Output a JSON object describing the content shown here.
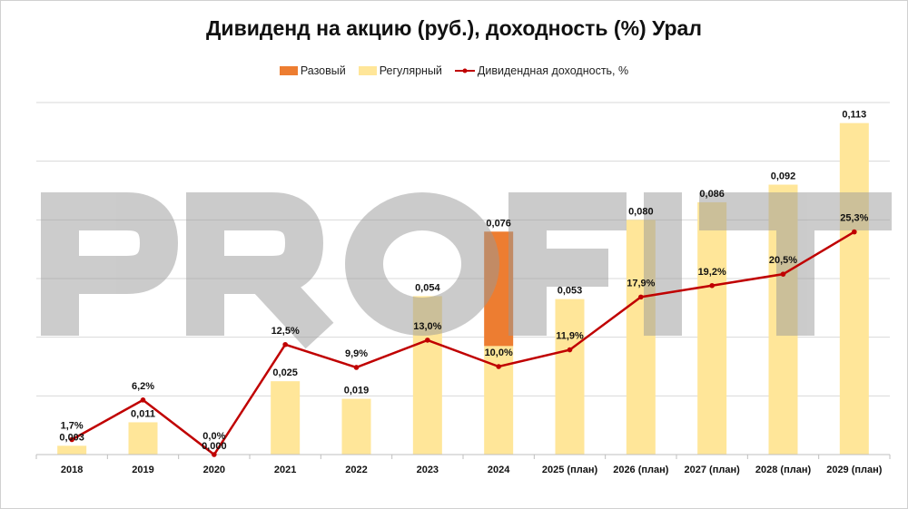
{
  "watermark": "PROFIT",
  "chart_data": {
    "type": "bar",
    "title": "Дивиденд на акцию (руб.), доходность (%) Урал",
    "categories": [
      "2018",
      "2019",
      "2020",
      "2021",
      "2022",
      "2023",
      "2024",
      "2025 (план)",
      "2026 (план)",
      "2027 (план)",
      "2028 (план)",
      "2029 (план)"
    ],
    "series": [
      {
        "name": "Разовый",
        "kind": "bar-stacked",
        "color": "#ED7D31",
        "values": [
          0,
          0,
          0,
          0,
          0,
          0,
          0.039,
          0,
          0,
          0,
          0,
          0
        ]
      },
      {
        "name": "Регулярный",
        "kind": "bar-stacked",
        "color": "#FFE699",
        "values": [
          0.003,
          0.011,
          0.0,
          0.025,
          0.019,
          0.054,
          0.037,
          0.053,
          0.08,
          0.086,
          0.092,
          0.113
        ]
      },
      {
        "name": "Дивидендная доходность, %",
        "kind": "line",
        "axis": "secondary",
        "color": "#C00000",
        "values": [
          1.7,
          6.2,
          0.0,
          12.5,
          9.9,
          13.0,
          10.0,
          11.9,
          17.9,
          19.2,
          20.5,
          25.3
        ]
      }
    ],
    "bar_total_labels": [
      "0,003",
      "0,011",
      "0,000",
      "0,025",
      "0,019",
      "0,054",
      "0,076",
      "0,053",
      "0,080",
      "0,086",
      "0,092",
      "0,113"
    ],
    "line_labels": [
      "1,7%",
      "6,2%",
      "0,0%",
      "12,5%",
      "9,9%",
      "13,0%",
      "10,0%",
      "11,9%",
      "17,9%",
      "19,2%",
      "20,5%",
      "25,3%"
    ],
    "ylim": [
      0,
      0.12
    ],
    "y2lim": [
      0,
      40
    ],
    "y_axis_visible": false,
    "grid": true,
    "legend_position": "top"
  }
}
